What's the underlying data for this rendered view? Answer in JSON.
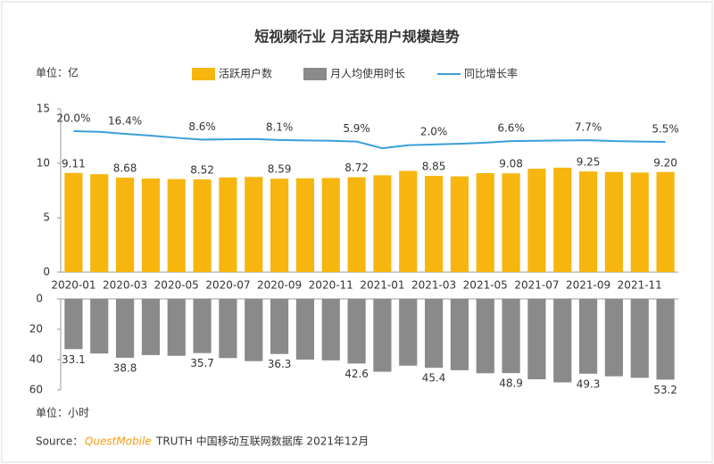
{
  "chart_data": [
    {
      "type": "bar",
      "title": "短视频行业 月活跃用户规模趋势",
      "y_label": "单位：亿",
      "categories": [
        "2020-01",
        null,
        "2020-03",
        null,
        "2020-05",
        null,
        "2020-07",
        null,
        "2020-09",
        null,
        "2020-11",
        null,
        "2021-01",
        null,
        "2021-03",
        null,
        "2021-05",
        null,
        "2021-07",
        null,
        "2021-09",
        null,
        "2021-11",
        null
      ],
      "ylim": [
        0,
        15
      ],
      "yticks": [
        0,
        5,
        10,
        15
      ],
      "y2lim": [
        -170,
        50
      ],
      "series": [
        {
          "name": "活跃用户数",
          "color": "#f6b60f",
          "values": [
            9.11,
            9.0,
            8.68,
            8.6,
            8.55,
            8.52,
            8.7,
            8.75,
            8.59,
            8.62,
            8.65,
            8.72,
            8.9,
            9.3,
            8.85,
            8.8,
            9.1,
            9.08,
            9.5,
            9.6,
            9.25,
            9.2,
            9.15,
            9.2
          ],
          "value_labels": [
            "9.11",
            null,
            "8.68",
            null,
            null,
            "8.52",
            null,
            null,
            "8.59",
            null,
            null,
            "8.72",
            null,
            null,
            "8.85",
            null,
            null,
            "9.08",
            null,
            null,
            "9.25",
            null,
            null,
            "9.20"
          ]
        },
        {
          "name": "同比增长率",
          "type": "line",
          "axis": "y2",
          "color": "#3a9fd8",
          "values": [
            20.0,
            19,
            16.4,
            14,
            11,
            8.6,
            9,
            9.5,
            8.1,
            7.5,
            7,
            5.9,
            -3,
            1,
            2.0,
            3,
            4.5,
            6.6,
            7,
            7.5,
            7.7,
            6.5,
            6,
            5.5
          ],
          "value_labels": [
            "20.0%",
            null,
            "16.4%",
            null,
            null,
            "8.6%",
            null,
            null,
            "8.1%",
            null,
            null,
            "5.9%",
            null,
            null,
            "2.0%",
            null,
            null,
            "6.6%",
            null,
            null,
            "7.7%",
            null,
            null,
            "5.5%"
          ]
        }
      ]
    },
    {
      "type": "bar",
      "inverted": true,
      "y_label": "单位：小时",
      "ylim": [
        0,
        60
      ],
      "yticks": [
        0,
        20,
        40,
        60
      ],
      "series": [
        {
          "name": "月人均使用时长",
          "color": "#8a8a8a",
          "values": [
            33.1,
            36,
            38.8,
            37,
            37.5,
            35.7,
            39,
            41,
            36.3,
            40,
            40.5,
            42.6,
            48,
            44,
            45.4,
            47,
            49,
            48.9,
            53,
            55,
            49.3,
            51,
            52,
            53.2
          ],
          "value_labels": [
            "33.1",
            null,
            "38.8",
            null,
            null,
            "35.7",
            null,
            null,
            "36.3",
            null,
            null,
            "42.6",
            null,
            null,
            "45.4",
            null,
            null,
            "48.9",
            null,
            null,
            "49.3",
            null,
            null,
            "53.2"
          ]
        }
      ]
    }
  ],
  "source": {
    "label": "Source：",
    "brand": "QuestMobile",
    "text": "TRUTH 中国移动互联网数据库 2021年12月"
  }
}
